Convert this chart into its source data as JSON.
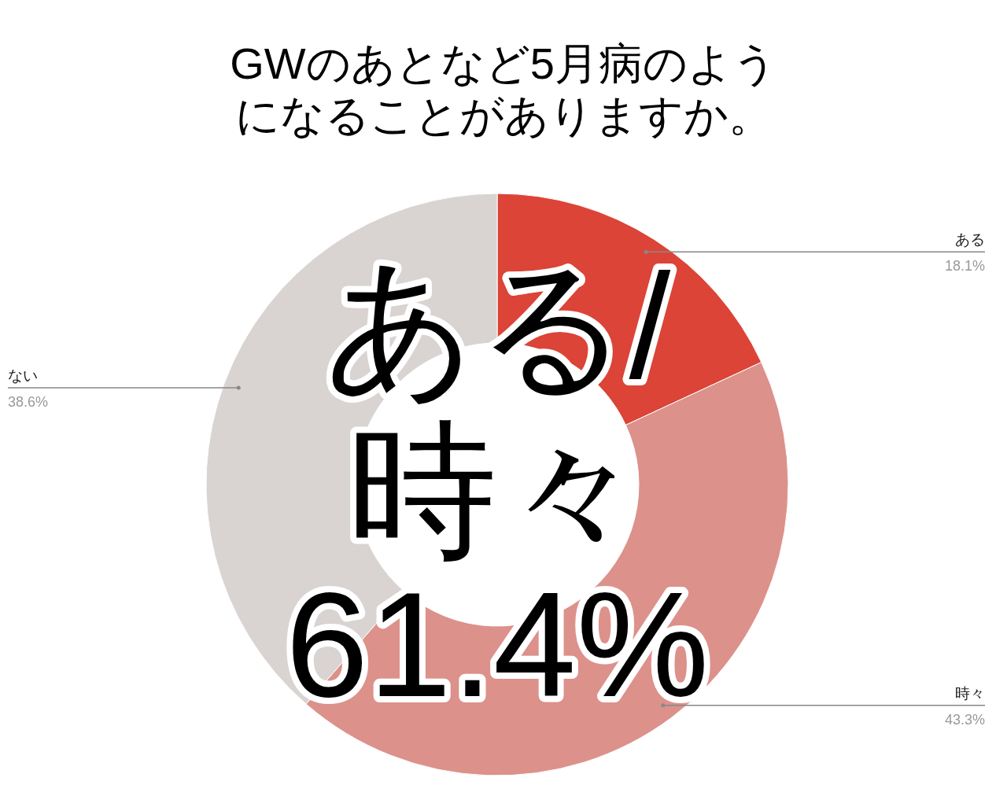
{
  "chart_data": {
    "type": "donut",
    "title": "GWのあとなど5月病のようになることがありますか。",
    "categories": [
      "ある",
      "時々",
      "ない"
    ],
    "values": [
      18.1,
      43.3,
      38.6
    ],
    "value_labels": [
      "18.1%",
      "43.3%",
      "38.6%"
    ],
    "colors": [
      "#db4437",
      "#dc918b",
      "#d9d3d1"
    ],
    "annotations": [
      "ある/",
      "時々",
      "61.4%"
    ]
  }
}
